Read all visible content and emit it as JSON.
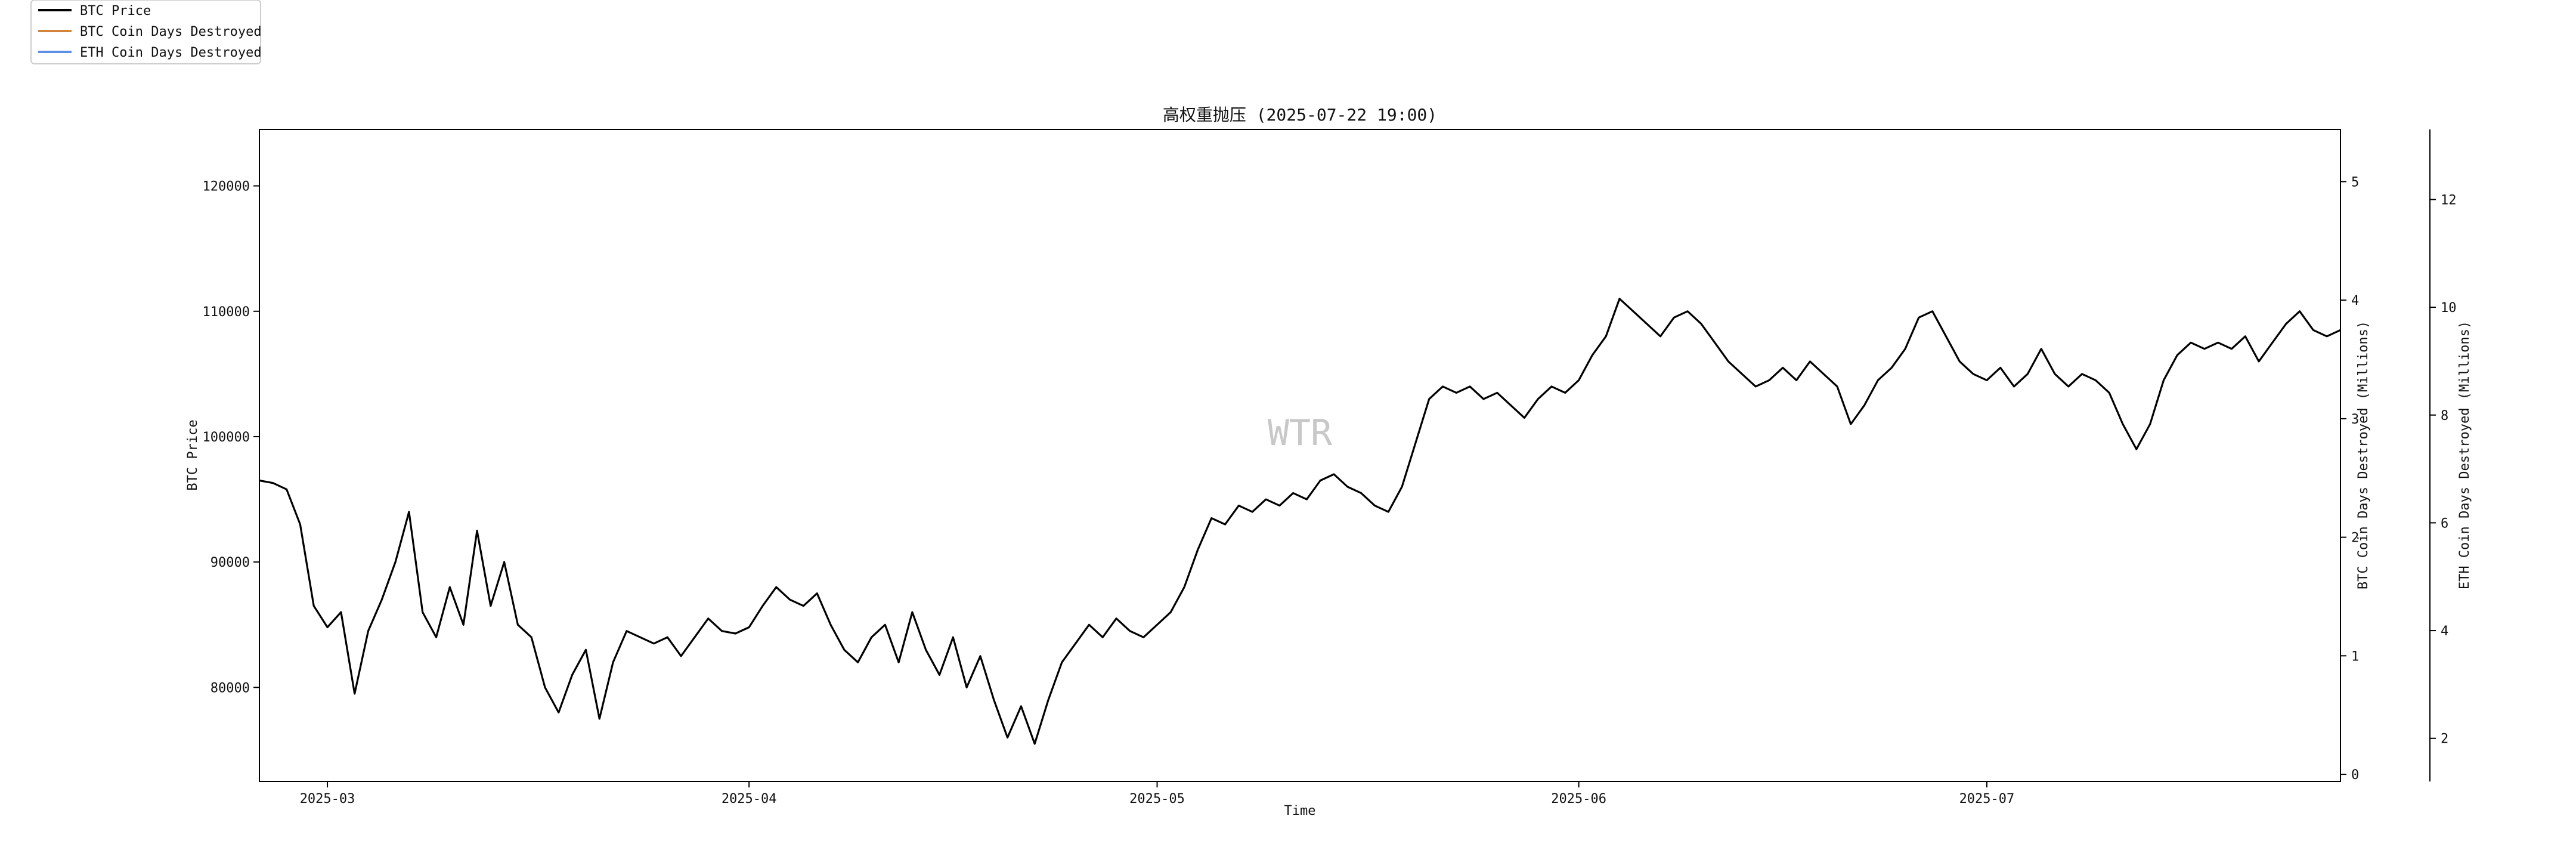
{
  "chart_data": {
    "type": "line",
    "title": "高权重抛压 (2025-07-22 19:00)",
    "xlabel": "Time",
    "watermark": "WTR",
    "x_ticks": [
      "2025-03",
      "2025-04",
      "2025-05",
      "2025-06",
      "2025-07"
    ],
    "x_range": [
      "2025-02-24",
      "2025-07-27"
    ],
    "legend_position": "top-left",
    "grid": false,
    "axes": {
      "left": {
        "label": "BTC Price",
        "ylim": [
          72500,
          124500
        ],
        "ticks": [
          80000,
          90000,
          100000,
          110000,
          120000
        ]
      },
      "right1": {
        "label": "BTC Coin Days Destroyed (Millions)",
        "ylim": [
          -0.06,
          5.44
        ],
        "ticks": [
          0,
          1,
          2,
          3,
          4,
          5
        ]
      },
      "right2": {
        "label": "ETH Coin Days Destroyed (Millions)",
        "ylim": [
          1.2,
          13.3
        ],
        "ticks": [
          2,
          4,
          6,
          8,
          10,
          12
        ]
      }
    },
    "series": [
      {
        "name": "BTC Price",
        "axis": "left",
        "color": "#000000",
        "points": [
          [
            "2025-02-24",
            96500
          ],
          [
            "2025-02-25",
            96300
          ],
          [
            "2025-02-26",
            95800
          ],
          [
            "2025-02-27",
            93000
          ],
          [
            "2025-02-28",
            86500
          ],
          [
            "2025-03-01",
            84800
          ],
          [
            "2025-03-02",
            86000
          ],
          [
            "2025-03-03",
            79500
          ],
          [
            "2025-03-04",
            84500
          ],
          [
            "2025-03-05",
            87000
          ],
          [
            "2025-03-06",
            90000
          ],
          [
            "2025-03-07",
            94000
          ],
          [
            "2025-03-08",
            86000
          ],
          [
            "2025-03-09",
            84000
          ],
          [
            "2025-03-10",
            88000
          ],
          [
            "2025-03-11",
            85000
          ],
          [
            "2025-03-12",
            92500
          ],
          [
            "2025-03-13",
            86500
          ],
          [
            "2025-03-14",
            90000
          ],
          [
            "2025-03-15",
            85000
          ],
          [
            "2025-03-16",
            84000
          ],
          [
            "2025-03-17",
            80000
          ],
          [
            "2025-03-18",
            78000
          ],
          [
            "2025-03-19",
            81000
          ],
          [
            "2025-03-20",
            83000
          ],
          [
            "2025-03-21",
            77500
          ],
          [
            "2025-03-22",
            82000
          ],
          [
            "2025-03-23",
            84500
          ],
          [
            "2025-03-24",
            84000
          ],
          [
            "2025-03-25",
            83500
          ],
          [
            "2025-03-26",
            84000
          ],
          [
            "2025-03-27",
            82500
          ],
          [
            "2025-03-28",
            84000
          ],
          [
            "2025-03-29",
            85500
          ],
          [
            "2025-03-30",
            84500
          ],
          [
            "2025-03-31",
            84300
          ],
          [
            "2025-04-01",
            84800
          ],
          [
            "2025-04-02",
            86500
          ],
          [
            "2025-04-03",
            88000
          ],
          [
            "2025-04-04",
            87000
          ],
          [
            "2025-04-05",
            86500
          ],
          [
            "2025-04-06",
            87500
          ],
          [
            "2025-04-07",
            85000
          ],
          [
            "2025-04-08",
            83000
          ],
          [
            "2025-04-09",
            82000
          ],
          [
            "2025-04-10",
            84000
          ],
          [
            "2025-04-11",
            85000
          ],
          [
            "2025-04-12",
            82000
          ],
          [
            "2025-04-13",
            86000
          ],
          [
            "2025-04-14",
            83000
          ],
          [
            "2025-04-15",
            81000
          ],
          [
            "2025-04-16",
            84000
          ],
          [
            "2025-04-17",
            80000
          ],
          [
            "2025-04-18",
            82500
          ],
          [
            "2025-04-19",
            79000
          ],
          [
            "2025-04-20",
            76000
          ],
          [
            "2025-04-21",
            78500
          ],
          [
            "2025-04-22",
            75500
          ],
          [
            "2025-04-23",
            79000
          ],
          [
            "2025-04-24",
            82000
          ],
          [
            "2025-04-25",
            83500
          ],
          [
            "2025-04-26",
            85000
          ],
          [
            "2025-04-27",
            84000
          ],
          [
            "2025-04-28",
            85500
          ],
          [
            "2025-04-29",
            84500
          ],
          [
            "2025-04-30",
            84000
          ],
          [
            "2025-05-01",
            85000
          ],
          [
            "2025-05-02",
            86000
          ],
          [
            "2025-05-03",
            88000
          ],
          [
            "2025-05-04",
            91000
          ],
          [
            "2025-05-05",
            93500
          ],
          [
            "2025-05-06",
            93000
          ],
          [
            "2025-05-07",
            94500
          ],
          [
            "2025-05-08",
            94000
          ],
          [
            "2025-05-09",
            95000
          ],
          [
            "2025-05-10",
            94500
          ],
          [
            "2025-05-11",
            95500
          ],
          [
            "2025-05-12",
            95000
          ],
          [
            "2025-05-13",
            96500
          ],
          [
            "2025-05-14",
            97000
          ],
          [
            "2025-05-15",
            96000
          ],
          [
            "2025-05-16",
            95500
          ],
          [
            "2025-05-17",
            94500
          ],
          [
            "2025-05-18",
            94000
          ],
          [
            "2025-05-19",
            96000
          ],
          [
            "2025-05-20",
            99500
          ],
          [
            "2025-05-21",
            103000
          ],
          [
            "2025-05-22",
            104000
          ],
          [
            "2025-05-23",
            103500
          ],
          [
            "2025-05-24",
            104000
          ],
          [
            "2025-05-25",
            103000
          ],
          [
            "2025-05-26",
            103500
          ],
          [
            "2025-05-27",
            102500
          ],
          [
            "2025-05-28",
            101500
          ],
          [
            "2025-05-29",
            103000
          ],
          [
            "2025-05-30",
            104000
          ],
          [
            "2025-05-31",
            103500
          ],
          [
            "2025-06-01",
            104500
          ],
          [
            "2025-06-02",
            106500
          ],
          [
            "2025-06-03",
            108000
          ],
          [
            "2025-06-04",
            111000
          ],
          [
            "2025-06-05",
            110000
          ],
          [
            "2025-06-06",
            109000
          ],
          [
            "2025-06-07",
            108000
          ],
          [
            "2025-06-08",
            109500
          ],
          [
            "2025-06-09",
            110000
          ],
          [
            "2025-06-10",
            109000
          ],
          [
            "2025-06-11",
            107500
          ],
          [
            "2025-06-12",
            106000
          ],
          [
            "2025-06-13",
            105000
          ],
          [
            "2025-06-14",
            104000
          ],
          [
            "2025-06-15",
            104500
          ],
          [
            "2025-06-16",
            105500
          ],
          [
            "2025-06-17",
            104500
          ],
          [
            "2025-06-18",
            106000
          ],
          [
            "2025-06-19",
            105000
          ],
          [
            "2025-06-20",
            104000
          ],
          [
            "2025-06-21",
            101000
          ],
          [
            "2025-06-22",
            102500
          ],
          [
            "2025-06-23",
            104500
          ],
          [
            "2025-06-24",
            105500
          ],
          [
            "2025-06-25",
            107000
          ],
          [
            "2025-06-26",
            109500
          ],
          [
            "2025-06-27",
            110000
          ],
          [
            "2025-06-28",
            108000
          ],
          [
            "2025-06-29",
            106000
          ],
          [
            "2025-06-30",
            105000
          ],
          [
            "2025-07-01",
            104500
          ],
          [
            "2025-07-02",
            105500
          ],
          [
            "2025-07-03",
            104000
          ],
          [
            "2025-07-04",
            105000
          ],
          [
            "2025-07-05",
            107000
          ],
          [
            "2025-07-06",
            105000
          ],
          [
            "2025-07-07",
            104000
          ],
          [
            "2025-07-08",
            105000
          ],
          [
            "2025-07-09",
            104500
          ],
          [
            "2025-07-10",
            103500
          ],
          [
            "2025-07-11",
            101000
          ],
          [
            "2025-07-12",
            99000
          ],
          [
            "2025-07-13",
            101000
          ],
          [
            "2025-07-14",
            104500
          ],
          [
            "2025-07-15",
            106500
          ],
          [
            "2025-07-16",
            107500
          ],
          [
            "2025-07-17",
            107000
          ],
          [
            "2025-07-18",
            107500
          ],
          [
            "2025-07-19",
            107000
          ],
          [
            "2025-07-20",
            108000
          ],
          [
            "2025-07-21",
            106000
          ],
          [
            "2025-07-22",
            107500
          ],
          [
            "2025-07-23",
            109000
          ],
          [
            "2025-07-24",
            110000
          ],
          [
            "2025-07-25",
            108500
          ],
          [
            "2025-07-26",
            108000
          ],
          [
            "2025-07-27",
            108500
          ]
        ]
      },
      {
        "name": "BTC Coin Days Destroyed",
        "axis": "right1",
        "color": "#d2843c",
        "points": []
      },
      {
        "name": "ETH Coin Days Destroyed",
        "axis": "right2",
        "color": "#5b8fe3",
        "points": []
      }
    ]
  }
}
